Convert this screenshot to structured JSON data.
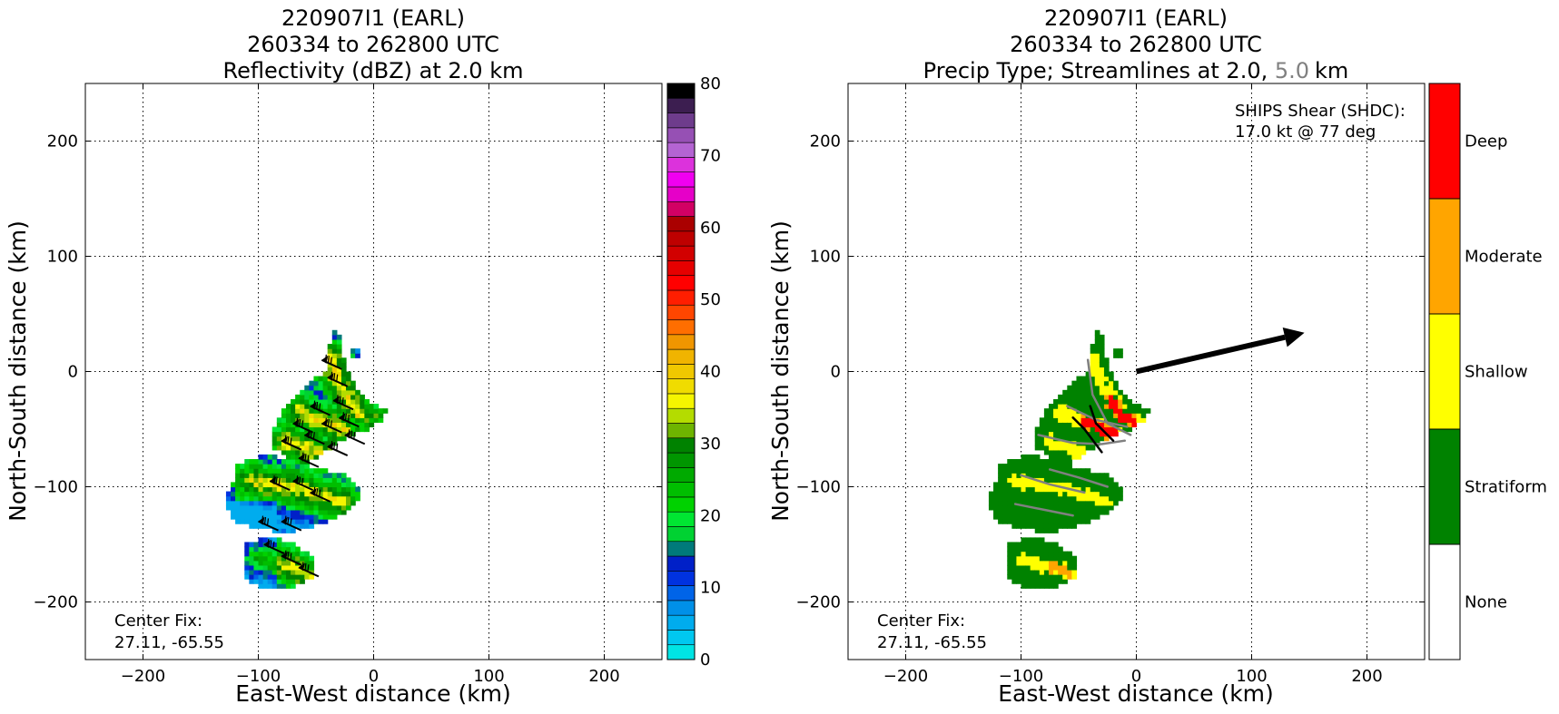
{
  "colors": {
    "reflectivity_scale": [
      "#00e4e4",
      "#00c8f0",
      "#00acee",
      "#0090e8",
      "#0064e8",
      "#0032e0",
      "#0020c8",
      "#007a7a",
      "#00d232",
      "#00e632",
      "#00d200",
      "#00be00",
      "#00aa00",
      "#009600",
      "#008200",
      "#6eb400",
      "#b4dc00",
      "#f5f500",
      "#f0dc00",
      "#f0c800",
      "#f0b400",
      "#f09600",
      "#ff6e00",
      "#ff4600",
      "#ff1e00",
      "#ff0000",
      "#e60000",
      "#d20000",
      "#be0000",
      "#aa0000",
      "#d20064",
      "#e600c8",
      "#f000f0",
      "#dc32dc",
      "#b464d2",
      "#9650b4",
      "#6e3c8c",
      "#3c1e50",
      "#000000"
    ],
    "precip_type": {
      "None": "#ffffff",
      "Stratiform": "#008200",
      "Shallow": "#ffff00",
      "Moderate": "#ffa500",
      "Deep": "#ff0000"
    },
    "streamline_5km": "#808080",
    "vector_2km": "#000000"
  },
  "chart_data": [
    {
      "type": "heatmap",
      "title_lines": [
        "220907I1 (EARL)",
        "260334 to 262800 UTC",
        "Reflectivity (dBZ) at 2.0 km"
      ],
      "xlabel": "East-West distance (km)",
      "ylabel": "North-South distance (km)",
      "xlim": [
        -250,
        250
      ],
      "ylim": [
        -250,
        250
      ],
      "xticks": [
        -200,
        -100,
        0,
        100,
        200
      ],
      "yticks": [
        -200,
        -100,
        0,
        100,
        200
      ],
      "xtick_labels": [
        "−200",
        "−100",
        "0",
        "100",
        "200"
      ],
      "ytick_labels": [
        "−200",
        "−100",
        "0",
        "100",
        "200"
      ],
      "grid": true,
      "annotation_lines": [
        "Center Fix:",
        "27.11, -65.55"
      ],
      "colorbar": {
        "min": 0,
        "max": 80,
        "ticks": [
          0,
          10,
          20,
          30,
          40,
          50,
          60,
          70,
          80
        ],
        "tick_labels": [
          "0",
          "10",
          "20",
          "30",
          "40",
          "50",
          "60",
          "70",
          "80"
        ]
      }
    },
    {
      "type": "heatmap",
      "title_lines": [
        "220907I1 (EARL)",
        "260334 to 262800 UTC"
      ],
      "title_third_prefix": "Precip Type; Streamlines at 2.0,",
      "title_third_gray": "5.0",
      "title_third_suffix": "km",
      "xlabel": "East-West distance (km)",
      "ylabel": "North-South distance (km)",
      "xlim": [
        -250,
        250
      ],
      "ylim": [
        -250,
        250
      ],
      "xticks": [
        -200,
        -100,
        0,
        100,
        200
      ],
      "yticks": [
        -200,
        -100,
        0,
        100,
        200
      ],
      "xtick_labels": [
        "−200",
        "−100",
        "0",
        "100",
        "200"
      ],
      "ytick_labels": [
        "−200",
        "−100",
        "0",
        "100",
        "200"
      ],
      "grid": true,
      "annotation_lines": [
        "Center Fix:",
        "27.11, -65.55"
      ],
      "shear_lines": [
        "SHIPS Shear (SHDC):",
        "17.0 kt @ 77 deg"
      ],
      "shear_vector": {
        "speed_kt": 17.0,
        "direction_deg": 77
      },
      "categories": [
        "None",
        "Stratiform",
        "Shallow",
        "Moderate",
        "Deep"
      ]
    }
  ]
}
